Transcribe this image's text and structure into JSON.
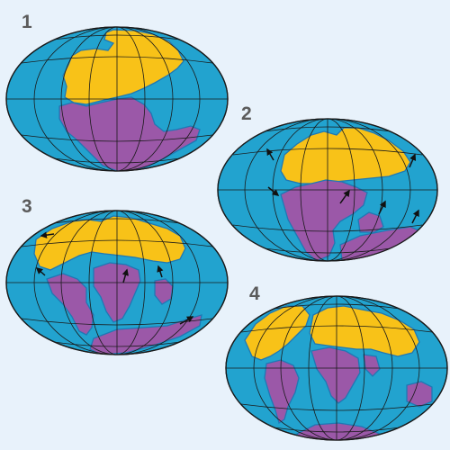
{
  "colors": {
    "background": "#e8f2fb",
    "ocean": "#22a3cf",
    "northern_land": "#f8c218",
    "southern_land": "#9b58a8",
    "coast": "#1f78b4",
    "grid": "#1a1a1a",
    "label": "#5b5b5b"
  },
  "stages": [
    {
      "label": "1"
    },
    {
      "label": "2"
    },
    {
      "label": "3"
    },
    {
      "label": "4"
    }
  ]
}
